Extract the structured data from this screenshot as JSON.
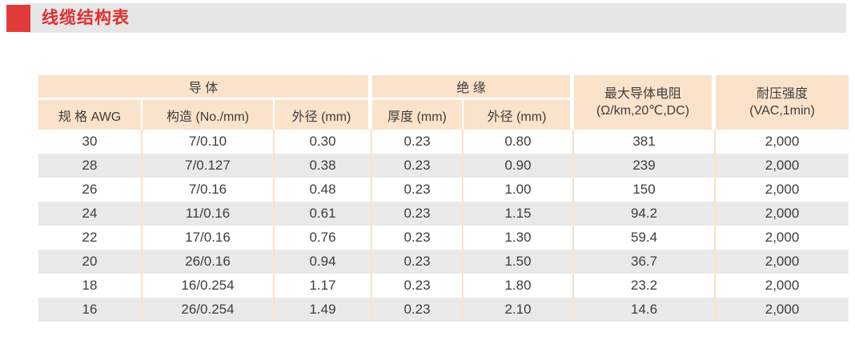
{
  "header": {
    "title": "线缆结构表",
    "accent_color": "#e23c3a",
    "bar_color": "#e6e6e6"
  },
  "table": {
    "header": {
      "groups": [
        "导  体",
        "绝  缘"
      ],
      "sub_columns": [
        "规 格 AWG",
        "构造 (No./mm)",
        "外径 (mm)",
        "厚度 (mm)",
        "外径 (mm)"
      ],
      "tall_columns": [
        "最大导体电阻\n(Ω/km,20℃,DC)",
        "耐压强度\n(VAC,1min)"
      ]
    },
    "rows": [
      [
        "30",
        "7/0.10",
        "0.30",
        "0.23",
        "0.80",
        "381",
        "2,000"
      ],
      [
        "28",
        "7/0.127",
        "0.38",
        "0.23",
        "0.90",
        "239",
        "2,000"
      ],
      [
        "26",
        "7/0.16",
        "0.48",
        "0.23",
        "1.00",
        "150",
        "2,000"
      ],
      [
        "24",
        "11/0.16",
        "0.61",
        "0.23",
        "1.15",
        "94.2",
        "2,000"
      ],
      [
        "22",
        "17/0.16",
        "0.76",
        "0.23",
        "1.30",
        "59.4",
        "2,000"
      ],
      [
        "20",
        "26/0.16",
        "0.94",
        "0.23",
        "1.50",
        "36.7",
        "2,000"
      ],
      [
        "18",
        "16/0.254",
        "1.17",
        "0.23",
        "1.80",
        "23.2",
        "2,000"
      ],
      [
        "16",
        "26/0.254",
        "1.49",
        "0.23",
        "2.10",
        "14.6",
        "2,000"
      ]
    ],
    "colors": {
      "header_bg": "#fbe2ca",
      "stripe_bg": "#e9e9e9",
      "text": "#3d3d3d"
    }
  },
  "chart_data": {
    "type": "table",
    "title": "线缆结构表",
    "column_groups": [
      {
        "label": "导体",
        "columns": [
          "规格 AWG",
          "构造 (No./mm)",
          "外径 (mm)"
        ]
      },
      {
        "label": "绝缘",
        "columns": [
          "厚度 (mm)",
          "外径 (mm)"
        ]
      },
      {
        "label": "最大导体电阻 (Ω/km,20℃,DC)",
        "columns": []
      },
      {
        "label": "耐压强度 (VAC,1min)",
        "columns": []
      }
    ],
    "columns": [
      "规格 AWG",
      "构造 (No./mm)",
      "导体外径 (mm)",
      "绝缘厚度 (mm)",
      "绝缘外径 (mm)",
      "最大导体电阻 (Ω/km,20℃,DC)",
      "耐压强度 (VAC,1min)"
    ],
    "rows": [
      [
        30,
        "7/0.10",
        0.3,
        0.23,
        0.8,
        381,
        2000
      ],
      [
        28,
        "7/0.127",
        0.38,
        0.23,
        0.9,
        239,
        2000
      ],
      [
        26,
        "7/0.16",
        0.48,
        0.23,
        1.0,
        150,
        2000
      ],
      [
        24,
        "11/0.16",
        0.61,
        0.23,
        1.15,
        94.2,
        2000
      ],
      [
        22,
        "17/0.16",
        0.76,
        0.23,
        1.3,
        59.4,
        2000
      ],
      [
        20,
        "26/0.16",
        0.94,
        0.23,
        1.5,
        36.7,
        2000
      ],
      [
        18,
        "16/0.254",
        1.17,
        0.23,
        1.8,
        23.2,
        2000
      ],
      [
        16,
        "26/0.254",
        1.49,
        0.23,
        2.1,
        14.6,
        2000
      ]
    ]
  }
}
